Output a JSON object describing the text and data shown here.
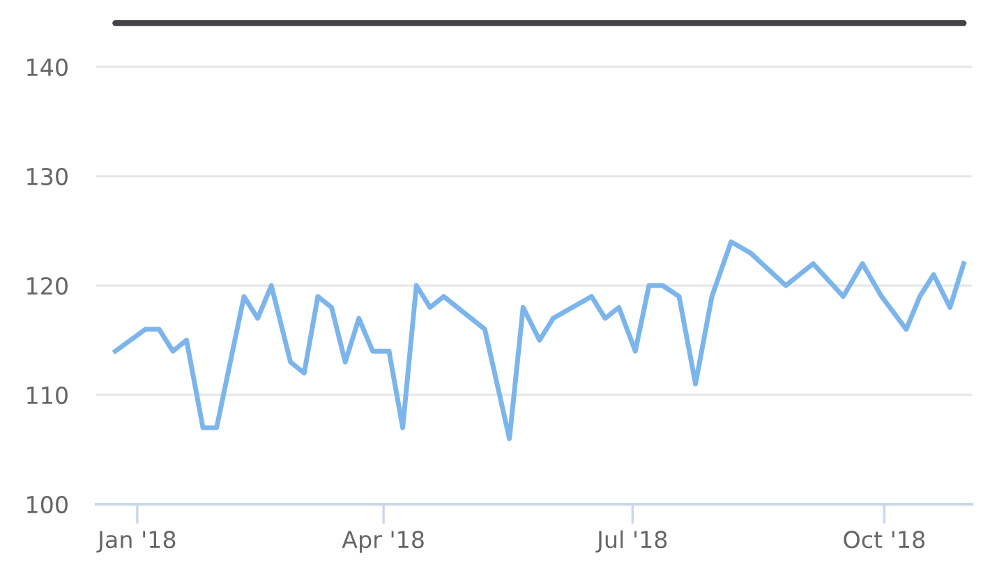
{
  "chart_data": {
    "type": "line",
    "x": [
      "2017-12-24",
      "2018-01-04",
      "2018-01-09",
      "2018-01-14",
      "2018-01-19",
      "2018-01-25",
      "2018-01-30",
      "2018-02-09",
      "2018-02-14",
      "2018-02-19",
      "2018-02-26",
      "2018-03-03",
      "2018-03-08",
      "2018-03-13",
      "2018-03-18",
      "2018-03-23",
      "2018-03-28",
      "2018-04-03",
      "2018-04-08",
      "2018-04-13",
      "2018-04-18",
      "2018-04-23",
      "2018-05-08",
      "2018-05-17",
      "2018-05-22",
      "2018-05-28",
      "2018-06-02",
      "2018-06-16",
      "2018-06-21",
      "2018-06-26",
      "2018-07-02",
      "2018-07-07",
      "2018-07-12",
      "2018-07-18",
      "2018-07-24",
      "2018-07-30",
      "2018-08-06",
      "2018-08-13",
      "2018-08-26",
      "2018-09-05",
      "2018-09-16",
      "2018-09-23",
      "2018-09-30",
      "2018-10-09",
      "2018-10-14",
      "2018-10-19",
      "2018-10-25",
      "2018-10-30"
    ],
    "series": [
      {
        "color": "#7cb5ec",
        "values": [
          114,
          116,
          116,
          114,
          115,
          107,
          107,
          119,
          117,
          120,
          113,
          112,
          119,
          118,
          113,
          117,
          114,
          114,
          107,
          120,
          118,
          119,
          116,
          106,
          118,
          115,
          117,
          119,
          117,
          118,
          114,
          120,
          120,
          119,
          111,
          119,
          124,
          123,
          120,
          122,
          119,
          122,
          119,
          116,
          119,
          121,
          118,
          122
        ]
      }
    ],
    "xlim": [
      "2017-12-17",
      "2018-11-02"
    ],
    "xticks": [
      {
        "value": "2018-01-01",
        "label": "Jan '18"
      },
      {
        "value": "2018-04-01",
        "label": "Apr '18"
      },
      {
        "value": "2018-07-01",
        "label": "Jul '18"
      },
      {
        "value": "2018-10-01",
        "label": "Oct '18"
      }
    ],
    "ylim": [
      100,
      144
    ],
    "yticks": [
      100,
      110,
      120,
      130,
      140
    ],
    "ref_lines": [
      {
        "axis": "y",
        "value": 144,
        "label": null,
        "color": "#434348"
      }
    ],
    "grid": "y",
    "legend": false,
    "marker": "none",
    "line_style": "solid"
  }
}
